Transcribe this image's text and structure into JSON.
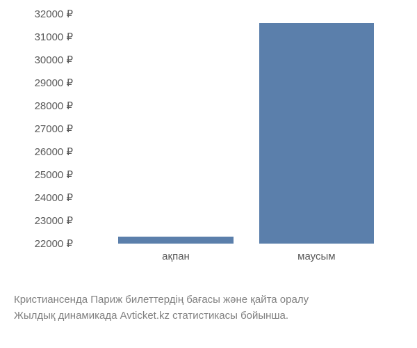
{
  "chart": {
    "type": "bar",
    "background_color": "#ffffff",
    "bar_color": "#5b7fab",
    "text_color": "#5a5a5a",
    "caption_color": "#808080",
    "label_fontsize": 15,
    "currency_suffix": " ₽",
    "y_axis": {
      "min": 22000,
      "max": 32000,
      "ticks": [
        22000,
        23000,
        24000,
        25000,
        26000,
        27000,
        28000,
        29000,
        30000,
        31000,
        32000
      ]
    },
    "bars": [
      {
        "label": "ақпан",
        "value": 22300,
        "left_pct": 12,
        "width_pct": 36
      },
      {
        "label": "маусым",
        "value": 31600,
        "left_pct": 56,
        "width_pct": 36
      }
    ],
    "caption_lines": [
      "Кристиансенда Париж билеттердің бағасы және қайта оралу",
      "Жылдық динамикада Avticket.kz статистикасы бойынша."
    ]
  }
}
